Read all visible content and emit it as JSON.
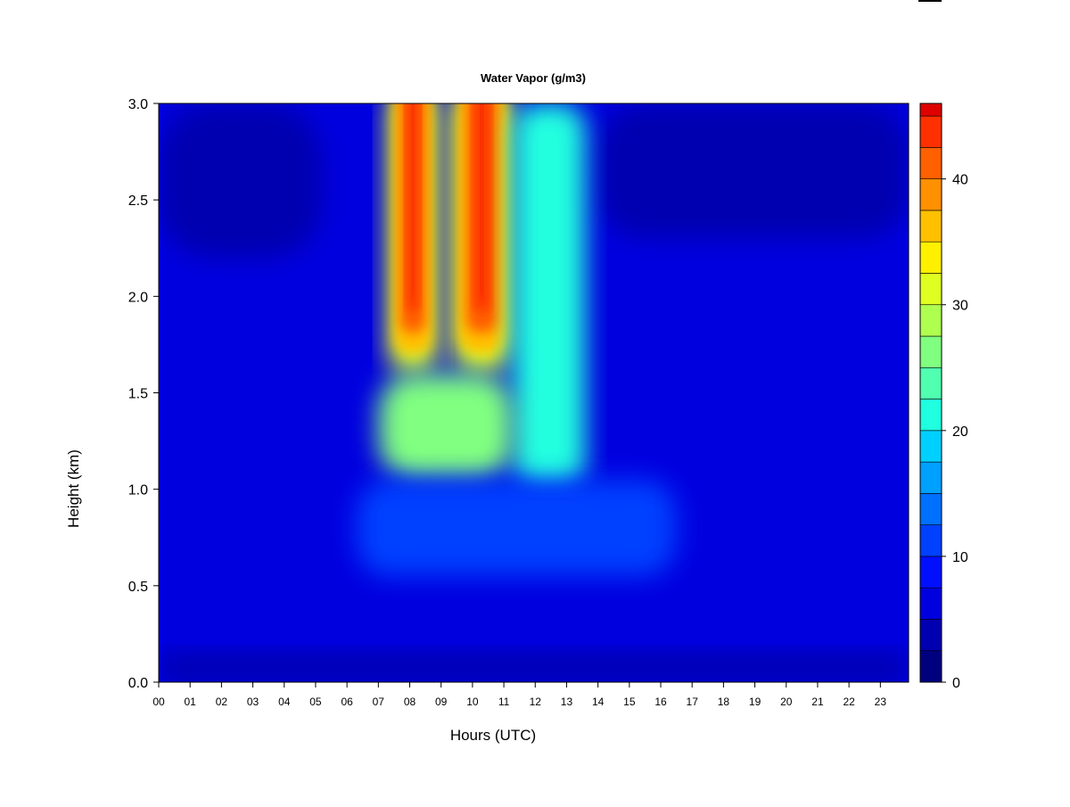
{
  "chart_data": {
    "type": "heatmap",
    "title": "Water Vapor (g/m3)",
    "xlabel": "Hours (UTC)",
    "ylabel": "Height (km)",
    "xlim": [
      0,
      23.9
    ],
    "ylim": [
      0,
      3.0
    ],
    "x_tick_labels": [
      "00",
      "01",
      "02",
      "03",
      "04",
      "05",
      "06",
      "07",
      "08",
      "09",
      "10",
      "11",
      "12",
      "13",
      "14",
      "15",
      "16",
      "17",
      "18",
      "19",
      "20",
      "21",
      "22",
      "23"
    ],
    "y_tick_labels": [
      "0.0",
      "0.5",
      "1.0",
      "1.5",
      "2.0",
      "2.5",
      "3.0"
    ],
    "y_ticks": [
      0,
      0.5,
      1.0,
      1.5,
      2.0,
      2.5,
      3.0
    ],
    "colorbar": {
      "levels": [
        0,
        2.5,
        5,
        7.5,
        10,
        12.5,
        15,
        17.5,
        20,
        22.5,
        25,
        27.5,
        30,
        32.5,
        35,
        37.5,
        40,
        42.5,
        45,
        46
      ],
      "colors": [
        "#00007F",
        "#0000B0",
        "#0000DF",
        "#0010FF",
        "#0040FF",
        "#0070FF",
        "#00A0FF",
        "#00D0FF",
        "#20FFDF",
        "#50FFAF",
        "#80FF80",
        "#AFFF50",
        "#DFFF20",
        "#FFF000",
        "#FFC000",
        "#FF9000",
        "#FF6000",
        "#FF3000",
        "#DF0000",
        "#B00000",
        "#7F0000"
      ],
      "tick_labels": [
        "0",
        "10",
        "20",
        "30",
        "40"
      ],
      "ticks": [
        0,
        10,
        20,
        30,
        40
      ],
      "range": [
        0,
        46
      ]
    },
    "features": [
      {
        "label": "background",
        "value": 6.5
      },
      {
        "label": "upper-left dry region",
        "x": [
          0,
          5.2
        ],
        "y": [
          2.2,
          3.0
        ],
        "value": 3
      },
      {
        "label": "upper-right dry region",
        "x": [
          14,
          23.9
        ],
        "y": [
          2.3,
          3.0
        ],
        "value": 4
      },
      {
        "label": "plume core 1",
        "x": [
          7.3,
          8.9
        ],
        "y": [
          1.6,
          3.0
        ],
        "value": 44
      },
      {
        "label": "plume core 2",
        "x": [
          9.3,
          11.3
        ],
        "y": [
          1.6,
          3.0
        ],
        "value": 44
      },
      {
        "label": "plume shoulder",
        "x": [
          11.3,
          13.6
        ],
        "y": [
          1.0,
          3.0
        ],
        "value": 20
      },
      {
        "label": "plume lower band",
        "x": [
          7.0,
          11.3
        ],
        "y": [
          1.05,
          1.6
        ],
        "value": 26
      },
      {
        "label": "mid-level moist band",
        "x": [
          6.3,
          16.5
        ],
        "y": [
          0.55,
          1.05
        ],
        "value": 11
      },
      {
        "label": "surface layer",
        "x": [
          0,
          23.9
        ],
        "y": [
          0,
          0.15
        ],
        "value": 4
      }
    ]
  }
}
